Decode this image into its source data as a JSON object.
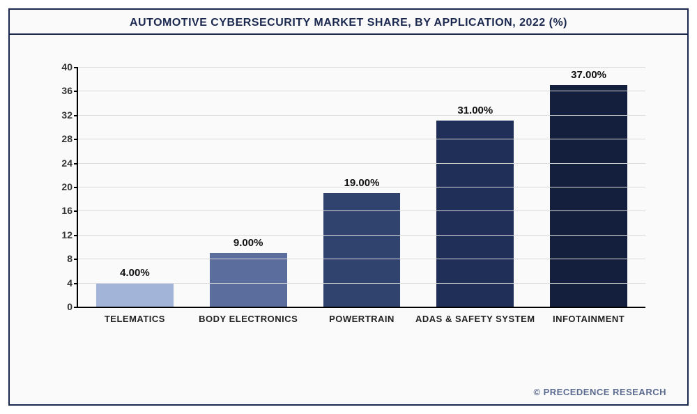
{
  "chart": {
    "type": "bar",
    "title": "AUTOMOTIVE CYBERSECURITY MARKET SHARE, BY APPLICATION, 2022 (%)",
    "categories": [
      "TELEMATICS",
      "BODY ELECTRONICS",
      "POWERTRAIN",
      "ADAS & SAFETY SYSTEM",
      "INFOTAINMENT"
    ],
    "values": [
      4.0,
      9.0,
      19.0,
      31.0,
      37.0
    ],
    "value_labels": [
      "4.00%",
      "9.00%",
      "19.00%",
      "31.00%",
      "37.00%"
    ],
    "bar_colors": [
      "#a2b4d8",
      "#5a6d9c",
      "#30436f",
      "#1f2f57",
      "#131f3d"
    ],
    "ylim": [
      0,
      40
    ],
    "ytick_step": 4,
    "y_ticks": [
      0,
      4,
      8,
      12,
      16,
      20,
      24,
      28,
      32,
      36,
      40
    ],
    "grid_color": "#d9d9d9",
    "background_color": "#fafafa",
    "border_color": "#1a2850",
    "axis_color": "#000000",
    "title_fontsize": 16,
    "label_fontsize": 14,
    "x_label_fontsize": 13,
    "bar_width_pct": 68
  },
  "footer": {
    "credit": "© PRECEDENCE RESEARCH"
  }
}
